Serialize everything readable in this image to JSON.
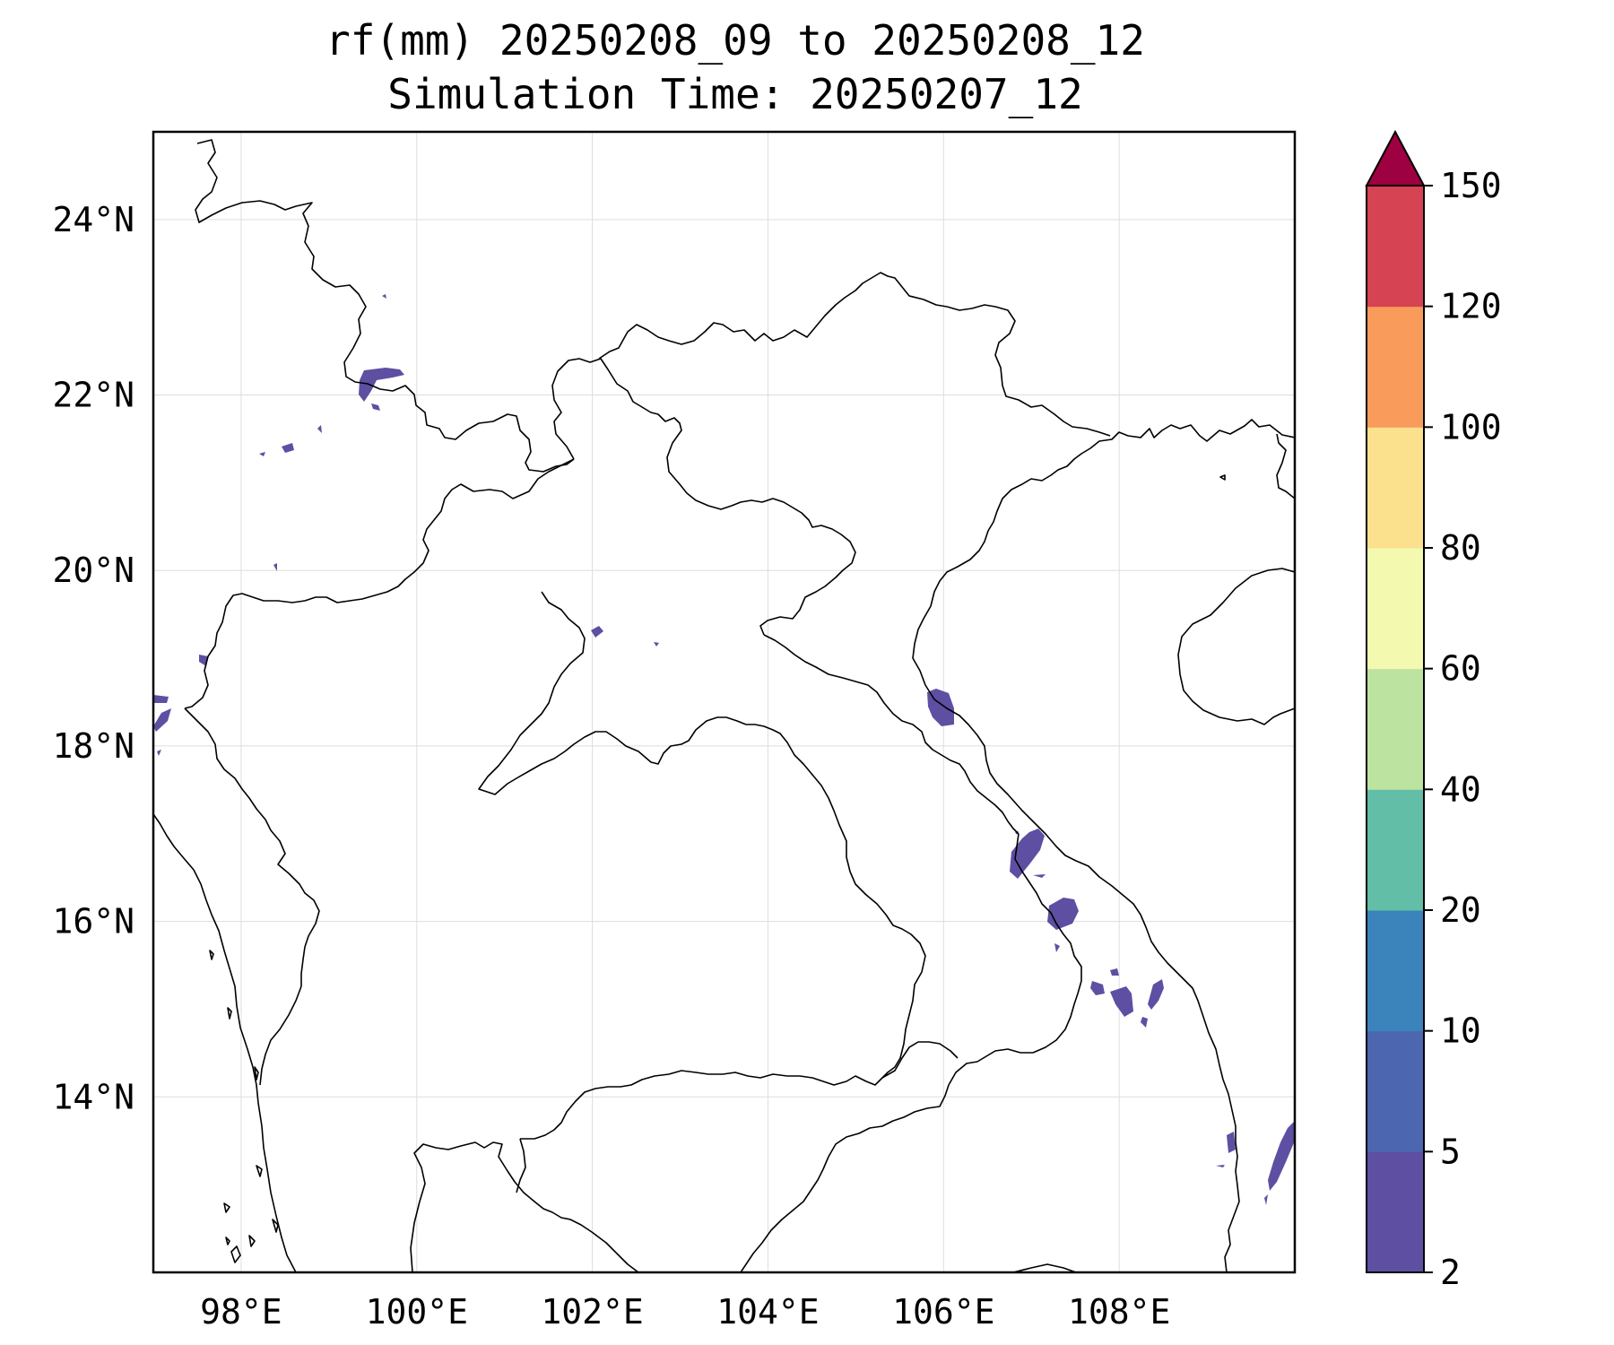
{
  "title": "rf(mm) 20250208_09 to 20250208_12",
  "subtitle": "Simulation Time: 20250207_12",
  "map": {
    "lon_range": [
      97,
      110
    ],
    "lat_range": [
      12,
      25
    ],
    "grid": true,
    "x_ticks": [
      98,
      100,
      102,
      104,
      106,
      108
    ],
    "y_ticks": [
      14,
      16,
      18,
      20,
      22,
      24
    ],
    "x_tick_labels": [
      "98°E",
      "100°E",
      "102°E",
      "104°E",
      "106°E",
      "108°E"
    ],
    "y_tick_labels": [
      "14°N",
      "16°N",
      "18°N",
      "20°N",
      "22°N",
      "24°N"
    ]
  },
  "colorbar": {
    "levels": [
      2,
      5,
      10,
      20,
      40,
      60,
      80,
      100,
      120,
      150
    ],
    "labels": [
      "2",
      "5",
      "10",
      "20",
      "40",
      "60",
      "80",
      "100",
      "120",
      "150"
    ],
    "colors": [
      "#5e4fa2",
      "#4c66b0",
      "#3a84bb",
      "#62bea6",
      "#bde3a0",
      "#f3fab0",
      "#fbe08e",
      "#f99c5b",
      "#d64352"
    ],
    "extend_color": "#9e0142",
    "extend": "max"
  },
  "rain_cells": [
    {
      "id": "rain-cell-1",
      "lon": 99.6,
      "lat": 22.1,
      "value": "2-5"
    },
    {
      "id": "rain-cell-2",
      "lon": 98.2,
      "lat": 21.4,
      "value": "2-5"
    },
    {
      "id": "rain-cell-3",
      "lon": 102.05,
      "lat": 19.3,
      "value": "2-5"
    },
    {
      "id": "rain-cell-4",
      "lon": 97.1,
      "lat": 18.4,
      "value": "2-5"
    },
    {
      "id": "rain-cell-5",
      "lon": 106.0,
      "lat": 18.45,
      "value": "2-5"
    },
    {
      "id": "rain-cell-6",
      "lon": 106.95,
      "lat": 16.7,
      "value": "2-5"
    },
    {
      "id": "rain-cell-7",
      "lon": 107.35,
      "lat": 16.05,
      "value": "2-5"
    },
    {
      "id": "rain-cell-8",
      "lon": 107.9,
      "lat": 15.2,
      "value": "2-5"
    },
    {
      "id": "rain-cell-9",
      "lon": 108.4,
      "lat": 15.2,
      "value": "2-5"
    },
    {
      "id": "rain-cell-10",
      "lon": 109.8,
      "lat": 12.9,
      "value": "2-5"
    }
  ]
}
